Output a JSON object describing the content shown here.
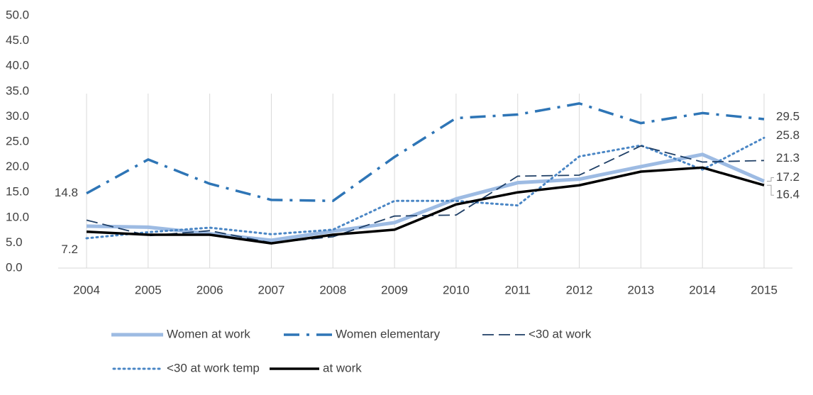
{
  "chart_data": {
    "type": "line",
    "categories": [
      "2004",
      "2005",
      "2006",
      "2007",
      "2008",
      "2009",
      "2010",
      "2011",
      "2012",
      "2013",
      "2014",
      "2015"
    ],
    "series": [
      {
        "name": "Women at work",
        "color": "#9dbbe3",
        "style": "solid",
        "width": 5,
        "values": [
          8.3,
          8.1,
          6.8,
          5.5,
          7.3,
          9.0,
          13.7,
          16.9,
          17.6,
          20.1,
          22.5,
          17.2
        ]
      },
      {
        "name": "Women elementary",
        "color": "#2e75b6",
        "style": "dashdot",
        "width": 3.5,
        "values": [
          14.8,
          21.5,
          16.7,
          13.5,
          13.3,
          22.0,
          29.7,
          30.4,
          32.6,
          28.7,
          30.7,
          29.5
        ]
      },
      {
        "name": "<30 at work",
        "color": "#1f3f66",
        "style": "dash",
        "width": 1.8,
        "values": [
          9.5,
          6.4,
          7.4,
          5.0,
          6.2,
          10.3,
          10.5,
          18.2,
          18.4,
          24.2,
          21.0,
          21.3
        ]
      },
      {
        "name": "<30 at work temp",
        "color": "#4a86c5",
        "style": "dot",
        "width": 3,
        "values": [
          5.9,
          7.1,
          8.0,
          6.7,
          7.6,
          13.3,
          13.3,
          12.4,
          22.1,
          24.3,
          19.5,
          25.8
        ]
      },
      {
        "name": "at work",
        "color": "#000000",
        "style": "solid",
        "width": 3.5,
        "values": [
          7.2,
          6.6,
          6.6,
          4.9,
          6.6,
          7.6,
          12.6,
          15.0,
          16.4,
          19.1,
          19.9,
          16.4
        ]
      }
    ],
    "ylim": [
      0,
      50
    ],
    "yticks": [
      {
        "value": 0,
        "label": "0.0"
      },
      {
        "value": 5,
        "label": "5.0"
      },
      {
        "value": 10,
        "label": "10.0"
      },
      {
        "value": 15,
        "label": "15.0"
      },
      {
        "value": 20,
        "label": "20.0"
      },
      {
        "value": 25,
        "label": "25.0"
      },
      {
        "value": 30,
        "label": "30.0"
      },
      {
        "value": 35,
        "label": "35.0"
      },
      {
        "value": 40,
        "label": "40.0"
      },
      {
        "value": 45,
        "label": "45.0"
      },
      {
        "value": 50,
        "label": "50.0"
      }
    ],
    "grid": "vertical",
    "legend": "bottom"
  }
}
